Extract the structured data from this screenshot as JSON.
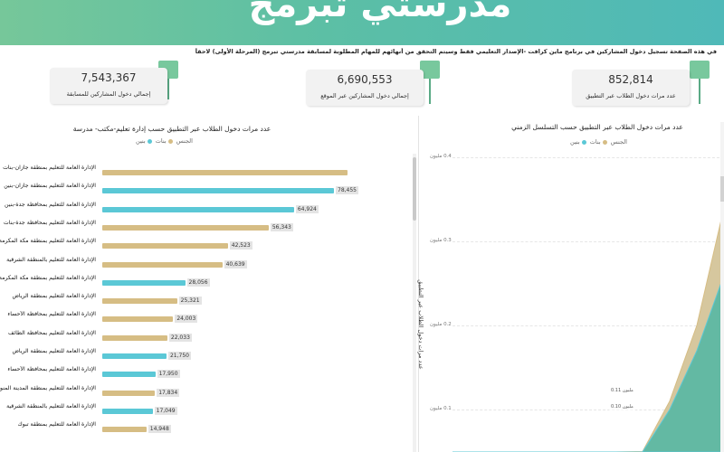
{
  "header": {
    "brand": "مدرستي تبرمج",
    "notice": "في هذه الصفحة تسجيل دخول المشاركين في برنامج ماين كرافت -الإصدار التعليمي فقط وسيتم التحقق من أنهائهم للمهام المطلوبة لمسابقة مدرستي تبرمج (المرحلة الأولى) لاحقاً"
  },
  "kpis": [
    {
      "value": "7,543,367",
      "label": "إجمالي دخول المشاركين للمسابقة"
    },
    {
      "value": "6,690,553",
      "label": "إجمالي دخول المشاركين عبر الموقع"
    },
    {
      "value": "852,814",
      "label": "عدد مرات دخول الطلاب عبر التطبيق"
    }
  ],
  "colors": {
    "boys": "#5bc8d6",
    "girls": "#d6bd84",
    "accent": "#78c89d"
  },
  "bar_panel": {
    "title": "عدد مرات دخول الطلاب عبر التطبيق حسب إدارة تعليم-مكتب- مدرسة",
    "legend_title": "الجنس",
    "legend_girls": "بنات",
    "legend_boys": "بنين"
  },
  "line_panel": {
    "title": "عدد مرات دخول الطلاب عبر التطبيق حسب التسلسل الزمني",
    "legend_title": "الجنس",
    "legend_girls": "بنات",
    "legend_boys": "بنين",
    "ylabel": "عدد مرات دخول الطلاب عبر التطبيق",
    "yticks": [
      "0.4 مليون",
      "0.3 مليون",
      "0.2 مليون",
      "0.1 مليون"
    ],
    "tip_upper": "0.11 مليون",
    "tip_lower": "0.10 مليون"
  },
  "chart_data": [
    {
      "type": "bar",
      "title": "عدد مرات دخول الطلاب عبر التطبيق حسب إدارة تعليم-مكتب- مدرسة",
      "xlim": [
        0,
        95000
      ],
      "legend": "top",
      "categories": [
        "الإدارة العامة للتعليم بمنطقة جازان-بنات",
        "الإدارة العامة للتعليم بمنطقة جازان-بنين",
        "الإدارة العامة للتعليم بمحافظة جدة-بنين",
        "الإدارة العامة للتعليم بمحافظة جدة-بنات",
        "الإدارة العامة للتعليم بمنطقة مكة المكرمة",
        "الإدارة العامة للتعليم بالمنطقة الشرقية",
        "الإدارة العامة للتعليم بمنطقة مكة المكرمة",
        "الإدارة العامة للتعليم بمنطقة الرياض",
        "الإدارة العامة للتعليم بمحافظة الأحساء",
        "الإدارة العامة للتعليم بمحافظة الطائف",
        "الإدارة العامة للتعليم بمنطقة الرياض",
        "الإدارة العامة للتعليم بمحافظة الأحساء",
        "الإدارة العامة للتعليم بمنطقة المدينة المنورة",
        "الإدارة العامة للتعليم بالمنطقة الشرقية",
        "الإدارة العامة للتعليم بمنطقة تبوك"
      ],
      "series_index": [
        1,
        0,
        0,
        1,
        1,
        1,
        0,
        1,
        1,
        1,
        0,
        0,
        1,
        0,
        1
      ],
      "values": [
        83000,
        78455,
        64924,
        56343,
        42523,
        40639,
        28056,
        25321,
        24003,
        22033,
        21750,
        17950,
        17834,
        17049,
        14948
      ],
      "value_labels": [
        "",
        "78,455",
        "64,924",
        "56,343",
        "42,523",
        "40,639",
        "28,056",
        "25,321",
        "24,003",
        "22,033",
        "21,750",
        "17,950",
        "17,834",
        "17,049",
        "14,948"
      ],
      "series": [
        {
          "name": "بنين"
        },
        {
          "name": "بنات"
        }
      ]
    },
    {
      "type": "area",
      "title": "عدد مرات دخول الطلاب عبر التطبيق حسب التسلسل الزمني",
      "ylabel": "عدد مرات دخول الطلاب عبر التطبيق",
      "ylim": [
        0,
        0.45
      ],
      "yticks": [
        0.1,
        0.2,
        0.3,
        0.4
      ],
      "x": [
        0,
        1,
        2,
        3,
        4,
        5,
        6,
        7,
        8,
        9,
        10
      ],
      "series": [
        {
          "name": "بنات",
          "values": [
            0,
            0,
            0,
            0,
            0,
            0,
            0.01,
            0.05,
            0.11,
            0.2,
            0.34
          ]
        },
        {
          "name": "بنين",
          "values": [
            0,
            0,
            0,
            0,
            0,
            0,
            0.005,
            0.04,
            0.1,
            0.17,
            0.26
          ]
        }
      ]
    }
  ]
}
